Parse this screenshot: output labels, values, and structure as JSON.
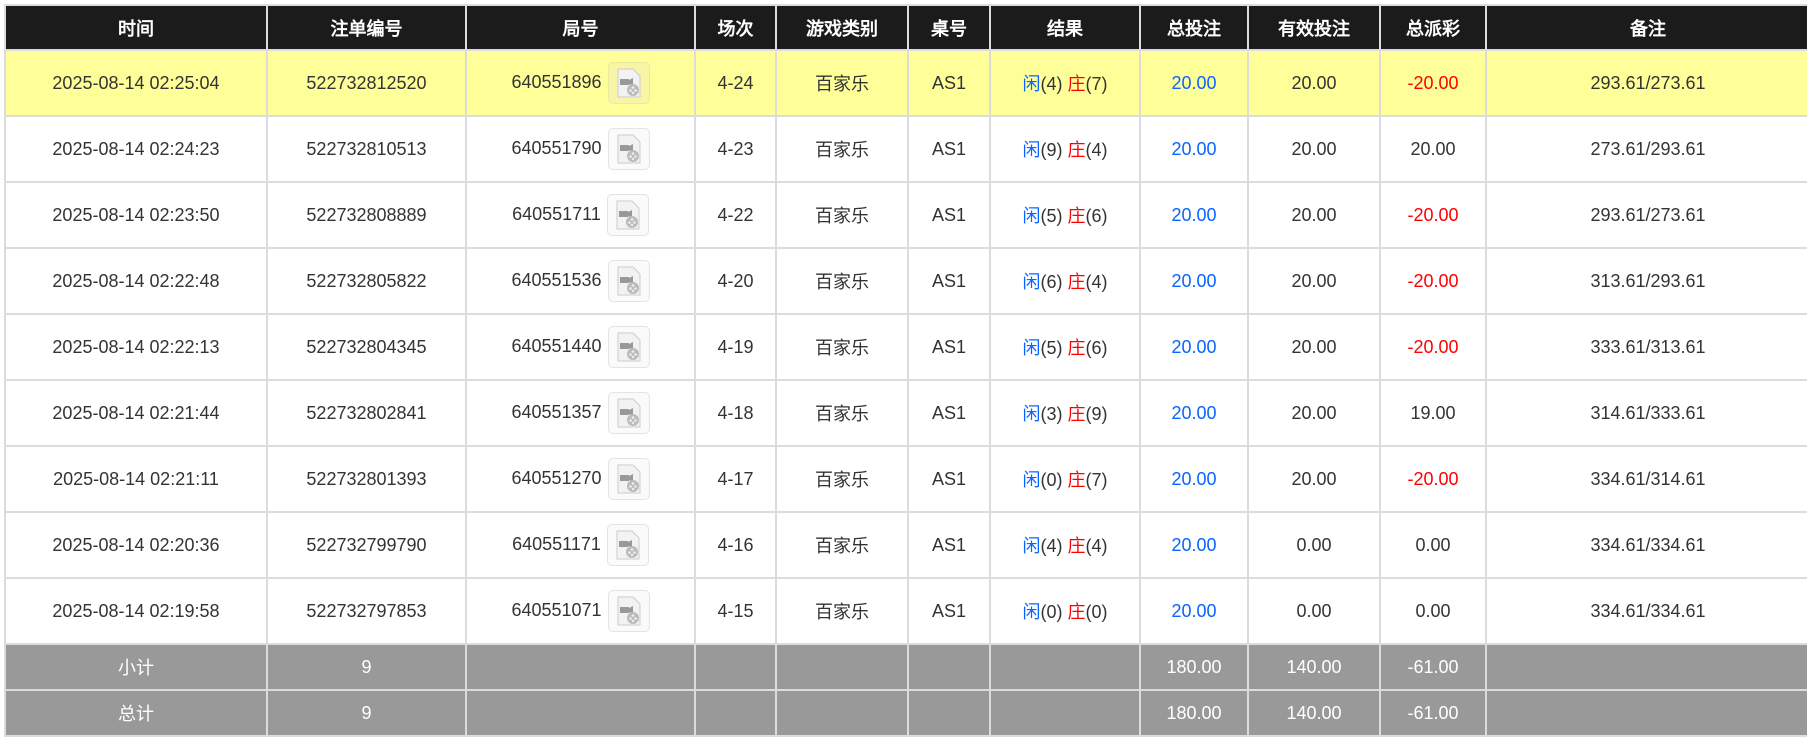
{
  "headers": [
    "时间",
    "注单编号",
    "局号",
    "场次",
    "游戏类别",
    "桌号",
    "结果",
    "总投注",
    "有效投注",
    "总派彩",
    "备注"
  ],
  "colors": {
    "header_bg": "#1b1b1b",
    "highlight_row": "#ffff99",
    "summary_bg": "#999999",
    "player": "#0a64ff",
    "banker": "#ff0000",
    "negative": "#ff0000"
  },
  "rows": [
    {
      "time": "2025-08-14 02:25:04",
      "bet_id": "522732812520",
      "round": "640551896",
      "icon": "video-replay-icon",
      "shoe": "4-24",
      "game": "百家乐",
      "table": "AS1",
      "player_label": "闲",
      "player_score": "(4)",
      "banker_label": "庄",
      "banker_score": "(7)",
      "total_bet": "20.00",
      "valid_bet": "20.00",
      "payout": "-20.00",
      "remark": "293.61/273.61",
      "highlighted": true
    },
    {
      "time": "2025-08-14 02:24:23",
      "bet_id": "522732810513",
      "round": "640551790",
      "icon": "video-replay-icon",
      "shoe": "4-23",
      "game": "百家乐",
      "table": "AS1",
      "player_label": "闲",
      "player_score": "(9)",
      "banker_label": "庄",
      "banker_score": "(4)",
      "total_bet": "20.00",
      "valid_bet": "20.00",
      "payout": "20.00",
      "remark": "273.61/293.61"
    },
    {
      "time": "2025-08-14 02:23:50",
      "bet_id": "522732808889",
      "round": "640551711",
      "icon": "video-replay-icon",
      "shoe": "4-22",
      "game": "百家乐",
      "table": "AS1",
      "player_label": "闲",
      "player_score": "(5)",
      "banker_label": "庄",
      "banker_score": "(6)",
      "total_bet": "20.00",
      "valid_bet": "20.00",
      "payout": "-20.00",
      "remark": "293.61/273.61"
    },
    {
      "time": "2025-08-14 02:22:48",
      "bet_id": "522732805822",
      "round": "640551536",
      "icon": "video-replay-icon",
      "shoe": "4-20",
      "game": "百家乐",
      "table": "AS1",
      "player_label": "闲",
      "player_score": "(6)",
      "banker_label": "庄",
      "banker_score": "(4)",
      "total_bet": "20.00",
      "valid_bet": "20.00",
      "payout": "-20.00",
      "remark": "313.61/293.61"
    },
    {
      "time": "2025-08-14 02:22:13",
      "bet_id": "522732804345",
      "round": "640551440",
      "icon": "video-replay-icon",
      "shoe": "4-19",
      "game": "百家乐",
      "table": "AS1",
      "player_label": "闲",
      "player_score": "(5)",
      "banker_label": "庄",
      "banker_score": "(6)",
      "total_bet": "20.00",
      "valid_bet": "20.00",
      "payout": "-20.00",
      "remark": "333.61/313.61"
    },
    {
      "time": "2025-08-14 02:21:44",
      "bet_id": "522732802841",
      "round": "640551357",
      "icon": "video-replay-icon",
      "shoe": "4-18",
      "game": "百家乐",
      "table": "AS1",
      "player_label": "闲",
      "player_score": "(3)",
      "banker_label": "庄",
      "banker_score": "(9)",
      "total_bet": "20.00",
      "valid_bet": "20.00",
      "payout": "19.00",
      "remark": "314.61/333.61"
    },
    {
      "time": "2025-08-14 02:21:11",
      "bet_id": "522732801393",
      "round": "640551270",
      "icon": "video-replay-icon",
      "shoe": "4-17",
      "game": "百家乐",
      "table": "AS1",
      "player_label": "闲",
      "player_score": "(0)",
      "banker_label": "庄",
      "banker_score": "(7)",
      "total_bet": "20.00",
      "valid_bet": "20.00",
      "payout": "-20.00",
      "remark": "334.61/314.61"
    },
    {
      "time": "2025-08-14 02:20:36",
      "bet_id": "522732799790",
      "round": "640551171",
      "icon": "video-replay-icon",
      "shoe": "4-16",
      "game": "百家乐",
      "table": "AS1",
      "player_label": "闲",
      "player_score": "(4)",
      "banker_label": "庄",
      "banker_score": "(4)",
      "total_bet": "20.00",
      "valid_bet": "0.00",
      "payout": "0.00",
      "remark": "334.61/334.61"
    },
    {
      "time": "2025-08-14 02:19:58",
      "bet_id": "522732797853",
      "round": "640551071",
      "icon": "video-replay-icon",
      "shoe": "4-15",
      "game": "百家乐",
      "table": "AS1",
      "player_label": "闲",
      "player_score": "(0)",
      "banker_label": "庄",
      "banker_score": "(0)",
      "total_bet": "20.00",
      "valid_bet": "0.00",
      "payout": "0.00",
      "remark": "334.61/334.61"
    }
  ],
  "summary": [
    {
      "label": "小计",
      "count": "9",
      "total_bet": "180.00",
      "valid_bet": "140.00",
      "payout": "-61.00"
    },
    {
      "label": "总计",
      "count": "9",
      "total_bet": "180.00",
      "valid_bet": "140.00",
      "payout": "-61.00"
    }
  ]
}
